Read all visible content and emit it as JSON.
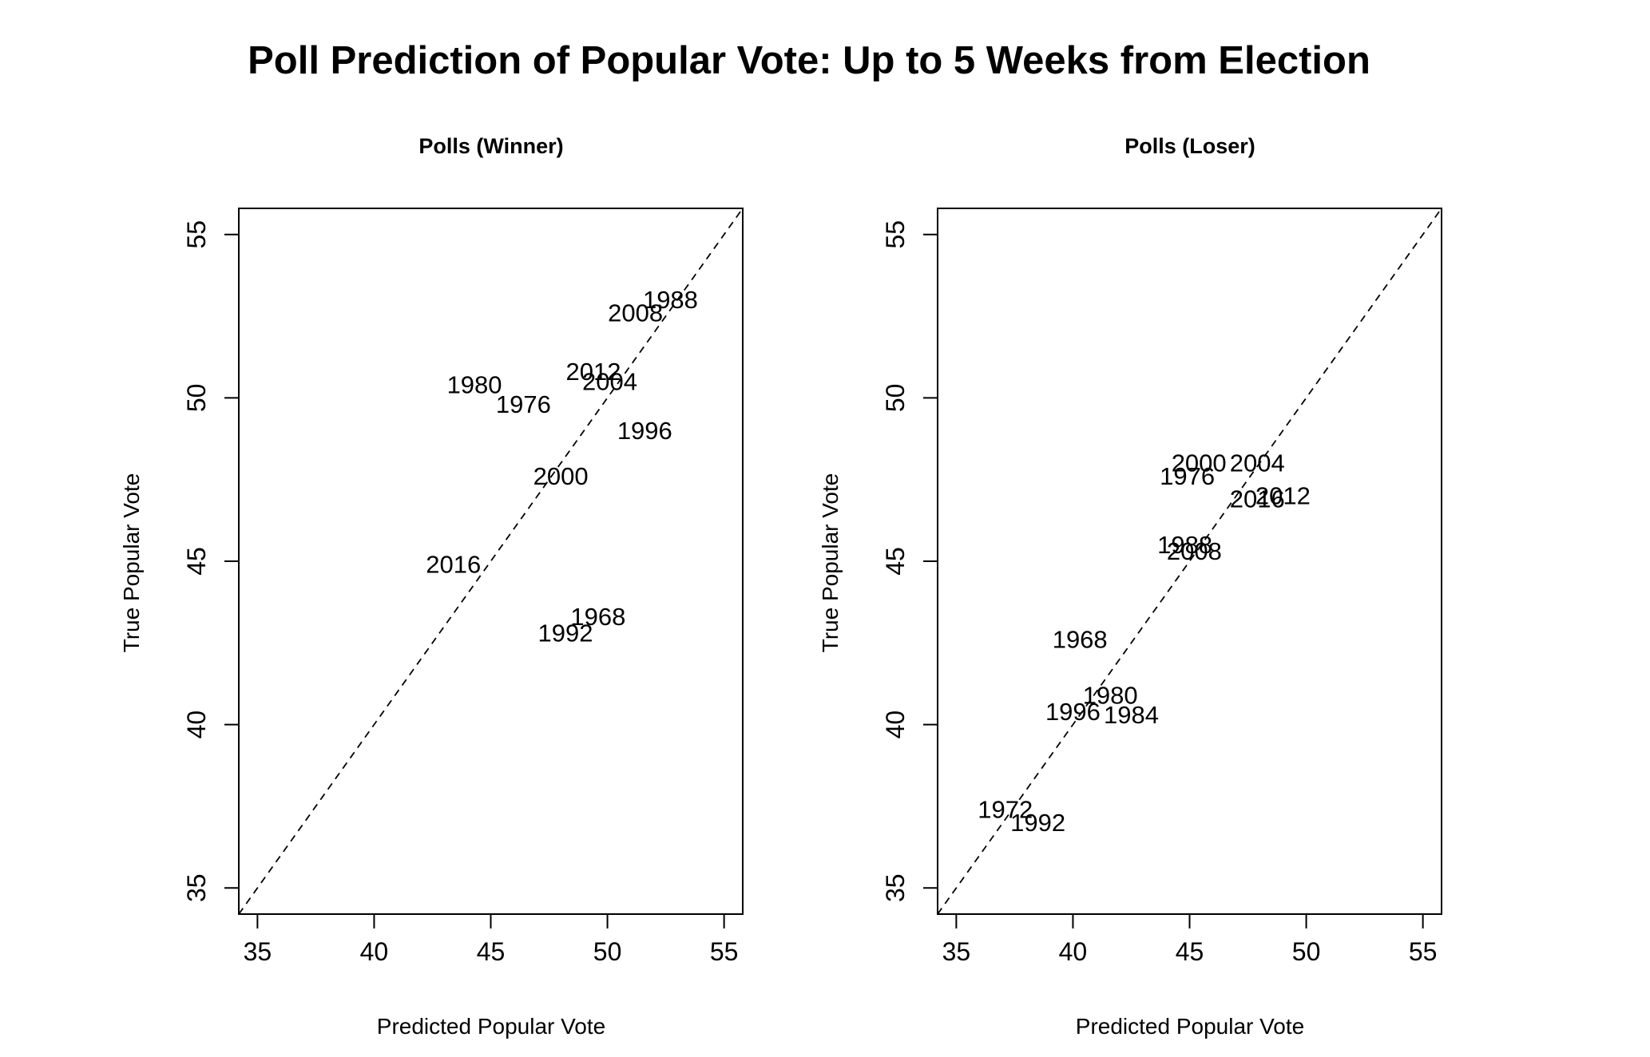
{
  "title": "Poll Prediction of Popular Vote: Up to 5 Weeks from Election",
  "chart_data": [
    {
      "type": "scatter",
      "title": "Polls (Winner)",
      "xlabel": "Predicted Popular Vote",
      "ylabel": "True Popular Vote",
      "xlim": [
        34.2,
        55.8
      ],
      "ylim": [
        34.2,
        55.8
      ],
      "xticks": [
        35,
        40,
        45,
        50,
        55
      ],
      "yticks": [
        35,
        40,
        45,
        50,
        55
      ],
      "reference_line": "y = x (dashed)",
      "points": [
        {
          "label": "1968",
          "x": 49.6,
          "y": 43.3
        },
        {
          "label": "1976",
          "x": 46.4,
          "y": 49.8
        },
        {
          "label": "1980",
          "x": 44.3,
          "y": 50.4
        },
        {
          "label": "1988",
          "x": 52.7,
          "y": 53.0
        },
        {
          "label": "1992",
          "x": 48.2,
          "y": 42.8
        },
        {
          "label": "1996",
          "x": 51.6,
          "y": 49.0
        },
        {
          "label": "2000",
          "x": 48.0,
          "y": 47.6
        },
        {
          "label": "2004",
          "x": 50.1,
          "y": 50.5
        },
        {
          "label": "2008",
          "x": 51.2,
          "y": 52.6
        },
        {
          "label": "2012",
          "x": 49.4,
          "y": 50.8
        },
        {
          "label": "2016",
          "x": 43.4,
          "y": 44.9
        }
      ]
    },
    {
      "type": "scatter",
      "title": "Polls (Loser)",
      "xlabel": "Predicted Popular Vote",
      "ylabel": "True Popular Vote",
      "xlim": [
        34.2,
        55.8
      ],
      "ylim": [
        34.2,
        55.8
      ],
      "xticks": [
        35,
        40,
        45,
        50,
        55
      ],
      "yticks": [
        35,
        40,
        45,
        50,
        55
      ],
      "reference_line": "y = x (dashed)",
      "points": [
        {
          "label": "1968",
          "x": 40.3,
          "y": 42.6
        },
        {
          "label": "1972",
          "x": 37.1,
          "y": 37.4
        },
        {
          "label": "1976",
          "x": 44.9,
          "y": 47.6
        },
        {
          "label": "1980",
          "x": 41.6,
          "y": 40.9
        },
        {
          "label": "1984",
          "x": 42.5,
          "y": 40.3
        },
        {
          "label": "1988",
          "x": 44.8,
          "y": 45.5
        },
        {
          "label": "1992",
          "x": 38.5,
          "y": 37.0
        },
        {
          "label": "1996",
          "x": 40.0,
          "y": 40.4
        },
        {
          "label": "2000",
          "x": 45.4,
          "y": 48.0
        },
        {
          "label": "2004",
          "x": 47.9,
          "y": 48.0
        },
        {
          "label": "2008",
          "x": 45.2,
          "y": 45.3
        },
        {
          "label": "2012",
          "x": 49.0,
          "y": 47.0
        },
        {
          "label": "2016",
          "x": 47.9,
          "y": 46.9
        }
      ]
    }
  ]
}
